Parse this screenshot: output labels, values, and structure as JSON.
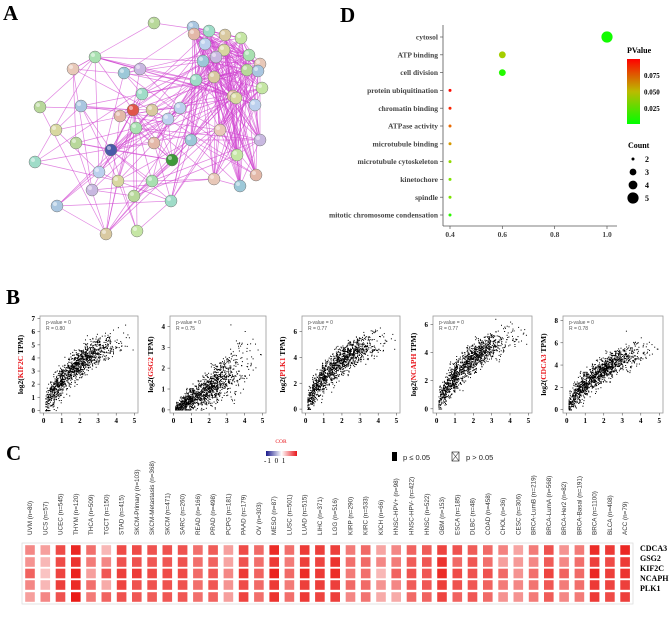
{
  "panels": {
    "A": "A",
    "B": "B",
    "C": "C",
    "D": "D"
  },
  "chart_data": [
    {
      "type": "scatter",
      "subtype": "dot-plot",
      "title": "",
      "xlabel": "",
      "xticks": [
        "0.4",
        "0.6",
        "0.8",
        "1.0"
      ],
      "xlim": [
        0.37,
        1.03
      ],
      "points": [
        {
          "term": "cytosol",
          "x": 1.0,
          "count": 5,
          "pvalue": 0.004
        },
        {
          "term": "ATP binding",
          "x": 0.6,
          "count": 3,
          "pvalue": 0.042
        },
        {
          "term": "cell division",
          "x": 0.6,
          "count": 3,
          "pvalue": 0.008
        },
        {
          "term": "protein ubiquitination",
          "x": 0.4,
          "count": 2,
          "pvalue": 0.098
        },
        {
          "term": "chromatin binding",
          "x": 0.4,
          "count": 2,
          "pvalue": 0.092
        },
        {
          "term": "ATPase activity",
          "x": 0.4,
          "count": 2,
          "pvalue": 0.075
        },
        {
          "term": "microtubule binding",
          "x": 0.4,
          "count": 2,
          "pvalue": 0.062
        },
        {
          "term": "microtubule cytoskeleton",
          "x": 0.4,
          "count": 2,
          "pvalue": 0.036
        },
        {
          "term": "kinetochore",
          "x": 0.4,
          "count": 2,
          "pvalue": 0.03
        },
        {
          "term": "spindle",
          "x": 0.4,
          "count": 2,
          "pvalue": 0.03
        },
        {
          "term": "mitotic chromosome condensation",
          "x": 0.4,
          "count": 2,
          "pvalue": 0.01
        }
      ],
      "color_legend": {
        "title": "PValue",
        "ticks": [
          "0.075",
          "0.050",
          "0.025"
        ],
        "tick_values": [
          0.075,
          0.05,
          0.025
        ],
        "range": [
          0.002,
          0.1
        ],
        "low_color": "#00ff00",
        "high_color": "#ff0000"
      },
      "size_legend": {
        "title": "Count",
        "values": [
          "2",
          "3",
          "4",
          "5"
        ]
      }
    },
    {
      "type": "scatter",
      "gene": "KIF2C",
      "ylabel_prefix": "log2(",
      "ylabel_suffix": " TPM)",
      "annotation": [
        "p-value = 0",
        "R = 0.80"
      ],
      "r": 0.8,
      "p_value": 0,
      "xticks": [
        "0",
        "1",
        "2",
        "3",
        "4",
        "5"
      ],
      "yticks": [
        "0",
        "1",
        "2",
        "3",
        "4",
        "5",
        "6",
        "7"
      ],
      "xlim": [
        -0.2,
        5.2
      ],
      "ylim": [
        -0.2,
        7.2
      ]
    },
    {
      "type": "scatter",
      "gene": "GSG2",
      "ylabel_prefix": "log2(",
      "ylabel_suffix": " TPM)",
      "annotation": [
        "p-value = 0",
        "R = 0.75"
      ],
      "r": 0.75,
      "p_value": 0,
      "xticks": [
        "0",
        "1",
        "2",
        "3",
        "4",
        "5"
      ],
      "yticks": [
        "0",
        "1",
        "2",
        "3",
        "4"
      ],
      "xlim": [
        -0.2,
        5.2
      ],
      "ylim": [
        -0.15,
        4.5
      ]
    },
    {
      "type": "scatter",
      "gene": "PLK1",
      "ylabel_prefix": "log2(",
      "ylabel_suffix": " TPM)",
      "annotation": [
        "p-value = 0",
        "R = 0.77"
      ],
      "r": 0.77,
      "p_value": 0,
      "xticks": [
        "0",
        "1",
        "2",
        "3",
        "4",
        "5"
      ],
      "yticks": [
        "0",
        "2",
        "4",
        "6"
      ],
      "xlim": [
        -0.2,
        5.2
      ],
      "ylim": [
        -0.3,
        7.2
      ]
    },
    {
      "type": "scatter",
      "gene": "NCAPH",
      "ylabel_prefix": "log2(",
      "ylabel_suffix": " TPM)",
      "annotation": [
        "p-value = 0",
        "R = 0.77"
      ],
      "r": 0.77,
      "p_value": 0,
      "xticks": [
        "0",
        "1",
        "2",
        "3",
        "4",
        "5"
      ],
      "yticks": [
        "0",
        "2",
        "4",
        "6"
      ],
      "xlim": [
        -0.2,
        5.2
      ],
      "ylim": [
        -0.3,
        6.6
      ]
    },
    {
      "type": "scatter",
      "gene": "CDCA3",
      "ylabel_prefix": "log2(",
      "ylabel_suffix": " TPM)",
      "annotation": [
        "p-value = 0",
        "R = 0.78"
      ],
      "r": 0.78,
      "p_value": 0,
      "xticks": [
        "0",
        "1",
        "2",
        "3",
        "4",
        "5"
      ],
      "yticks": [
        "0",
        "2",
        "4",
        "6",
        "8"
      ],
      "xlim": [
        -0.2,
        5.2
      ],
      "ylim": [
        -0.3,
        8.4
      ]
    },
    {
      "type": "heatmap",
      "legend_title": "COR",
      "legend_ticks": [
        "-1 0 1"
      ],
      "legend_colors": [
        "#1a1a8c",
        "#ffffff",
        "#e8141a"
      ],
      "sig_legend": [
        "p ≤ 0.05",
        "p > 0.05"
      ],
      "columns": [
        "UVM (n=80)",
        "UCS (n=57)",
        "UCEC (n=545)",
        "THYM (n=120)",
        "THCA (n=509)",
        "TGCT (n=150)",
        "STAD (n=415)",
        "SKCM-Primary (n=103)",
        "SKCM-Metastasis (n=368)",
        "SKCM (n=471)",
        "SARC (n=260)",
        "READ (n=166)",
        "PRAD (n=498)",
        "PCPG (n=181)",
        "PAAD (n=179)",
        "OV (n=303)",
        "MESO (n=87)",
        "LUSC (n=501)",
        "LUAD (n=515)",
        "LIHC (n=371)",
        "LGG (n=516)",
        "KIRP (n=290)",
        "KIRC (n=533)",
        "KICH (n=66)",
        "HNSC-HPV+ (n=98)",
        "HNSC-HPV- (n=422)",
        "HNSC (n=522)",
        "GBM (n=153)",
        "ESCA (n=185)",
        "DLBC (n=48)",
        "COAD (n=458)",
        "CHOL (n=36)",
        "CESC (n=306)",
        "BRCA-LumB (n=219)",
        "BRCA-LumA (n=568)",
        "BRCA-Her2 (n=82)",
        "BRCA-Basal (n=191)",
        "BRCA (n=1100)",
        "BLCA (n=408)",
        "ACC (n=79)"
      ],
      "rows": [
        "CDCA3",
        "GSG2",
        "KIF2C",
        "NCAPH",
        "PLK1"
      ],
      "values": [
        [
          0.5,
          0.4,
          0.75,
          0.9,
          0.6,
          0.3,
          0.75,
          0.75,
          0.72,
          0.72,
          0.72,
          0.6,
          0.68,
          0.4,
          0.75,
          0.62,
          0.88,
          0.6,
          0.82,
          0.8,
          0.8,
          0.55,
          0.62,
          0.38,
          0.5,
          0.65,
          0.68,
          0.78,
          0.72,
          0.68,
          0.62,
          0.52,
          0.38,
          0.55,
          0.72,
          0.45,
          0.55,
          0.88,
          0.82,
          0.9
        ],
        [
          0.45,
          0.3,
          0.75,
          0.85,
          0.55,
          0.5,
          0.72,
          0.72,
          0.7,
          0.7,
          0.72,
          0.6,
          0.65,
          0.38,
          0.72,
          0.6,
          0.82,
          0.55,
          0.8,
          0.78,
          0.85,
          0.6,
          0.62,
          0.5,
          0.55,
          0.68,
          0.7,
          0.85,
          0.62,
          0.7,
          0.6,
          0.4,
          0.42,
          0.5,
          0.68,
          0.5,
          0.6,
          0.8,
          0.75,
          0.82
        ],
        [
          0.65,
          0.25,
          0.78,
          0.92,
          0.4,
          0.7,
          0.8,
          0.82,
          0.75,
          0.75,
          0.75,
          0.62,
          0.7,
          0.5,
          0.82,
          0.65,
          0.92,
          0.62,
          0.88,
          0.82,
          0.88,
          0.55,
          0.6,
          0.3,
          0.65,
          0.72,
          0.7,
          0.88,
          0.75,
          0.72,
          0.72,
          0.62,
          0.45,
          0.6,
          0.78,
          0.65,
          0.62,
          0.9,
          0.8,
          0.85
        ],
        [
          0.5,
          0.3,
          0.8,
          0.88,
          0.6,
          0.35,
          0.78,
          0.72,
          0.72,
          0.72,
          0.72,
          0.6,
          0.7,
          0.45,
          0.75,
          0.62,
          0.82,
          0.55,
          0.8,
          0.8,
          0.8,
          0.62,
          0.62,
          0.45,
          0.5,
          0.68,
          0.7,
          0.8,
          0.72,
          0.7,
          0.65,
          0.55,
          0.5,
          0.58,
          0.7,
          0.55,
          0.6,
          0.82,
          0.78,
          0.8
        ],
        [
          0.4,
          0.5,
          0.72,
          0.95,
          0.55,
          0.65,
          0.72,
          0.7,
          0.68,
          0.7,
          0.7,
          0.6,
          0.65,
          0.4,
          0.78,
          0.6,
          0.85,
          0.6,
          0.82,
          0.78,
          0.8,
          0.5,
          0.58,
          0.35,
          0.35,
          0.62,
          0.65,
          0.78,
          0.65,
          0.7,
          0.62,
          0.45,
          0.45,
          0.55,
          0.68,
          0.5,
          0.55,
          0.82,
          0.75,
          0.8
        ]
      ]
    }
  ]
}
